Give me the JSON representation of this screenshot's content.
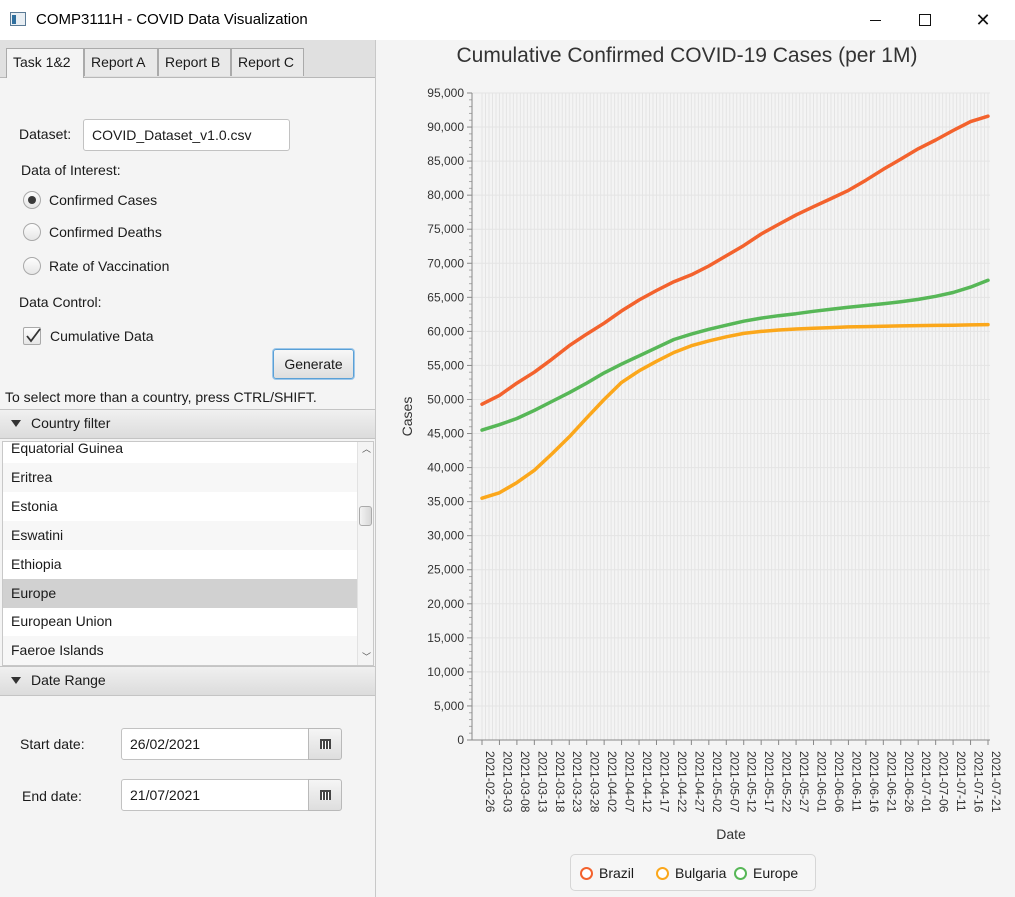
{
  "window": {
    "title": "COMP3111H - COVID Data Visualization"
  },
  "tabs": [
    {
      "label": "Task 1&2"
    },
    {
      "label": "Report A"
    },
    {
      "label": "Report B"
    },
    {
      "label": "Report C"
    }
  ],
  "active_tab": "Task 1&2",
  "form": {
    "dataset_label": "Dataset:",
    "dataset_value": "COVID_Dataset_v1.0.csv",
    "interest_label": "Data of Interest:",
    "options": [
      {
        "label": "Confirmed Cases",
        "selected": true
      },
      {
        "label": "Confirmed Deaths",
        "selected": false
      },
      {
        "label": "Rate of Vaccination",
        "selected": false
      }
    ],
    "control_label": "Data Control:",
    "cumulative_label": "Cumulative Data",
    "cumulative_checked": true,
    "generate_label": "Generate",
    "hint": "To select more than a country, press CTRL/SHIFT."
  },
  "country_filter": {
    "title": "Country filter",
    "items": [
      "Equatorial Guinea",
      "Eritrea",
      "Estonia",
      "Eswatini",
      "Ethiopia",
      "Europe",
      "European Union",
      "Faeroe Islands"
    ],
    "selected": "Europe"
  },
  "date_range": {
    "title": "Date Range",
    "start_label": "Start date:",
    "start_value": "26/02/2021",
    "end_label": "End date:",
    "end_value": "21/07/2021"
  },
  "chart_data": {
    "type": "line",
    "title": "Cumulative Confirmed COVID-19 Cases (per 1M)",
    "xlabel": "Date",
    "ylabel": "Cases",
    "ylim": [
      0,
      95000
    ],
    "ytick_step": 5000,
    "y_ticks": [
      "0",
      "5,000",
      "10,000",
      "15,000",
      "20,000",
      "25,000",
      "30,000",
      "35,000",
      "40,000",
      "45,000",
      "50,000",
      "55,000",
      "60,000",
      "65,000",
      "70,000",
      "75,000",
      "80,000",
      "85,000",
      "90,000",
      "95,000"
    ],
    "x_tick_labels": [
      "2021-02-26",
      "2021-03-03",
      "2021-03-08",
      "2021-03-13",
      "2021-03-18",
      "2021-03-23",
      "2021-03-28",
      "2021-04-02",
      "2021-04-07",
      "2021-04-12",
      "2021-04-17",
      "2021-04-22",
      "2021-04-27",
      "2021-05-02",
      "2021-05-07",
      "2021-05-12",
      "2021-05-17",
      "2021-05-22",
      "2021-05-27",
      "2021-06-01",
      "2021-06-06",
      "2021-06-11",
      "2021-06-16",
      "2021-06-21",
      "2021-06-26",
      "2021-07-01",
      "2021-07-06",
      "2021-07-11",
      "2021-07-16",
      "2021-07-21"
    ],
    "grid": true,
    "legend": "bottom",
    "series": [
      {
        "name": "Brazil",
        "color": "#f3622d",
        "values": [
          49300,
          50600,
          52400,
          54000,
          55900,
          57900,
          59600,
          61200,
          63000,
          64600,
          66000,
          67300,
          68300,
          69600,
          71100,
          72600,
          74300,
          75700,
          77100,
          78300,
          79500,
          80700,
          82200,
          83800,
          85300,
          86800,
          88100,
          89500,
          90800,
          91600
        ]
      },
      {
        "name": "Bulgaria",
        "color": "#fba71b",
        "values": [
          35500,
          36300,
          37800,
          39600,
          42000,
          44500,
          47300,
          50000,
          52500,
          54200,
          55600,
          56900,
          57900,
          58600,
          59200,
          59700,
          60000,
          60200,
          60350,
          60450,
          60550,
          60650,
          60700,
          60750,
          60800,
          60850,
          60880,
          60900,
          60950,
          61000
        ]
      },
      {
        "name": "Europe",
        "color": "#57b757",
        "values": [
          45500,
          46300,
          47200,
          48400,
          49700,
          51000,
          52400,
          53900,
          55200,
          56400,
          57600,
          58800,
          59600,
          60300,
          60900,
          61500,
          61950,
          62300,
          62600,
          62950,
          63250,
          63550,
          63800,
          64050,
          64350,
          64700,
          65150,
          65700,
          66500,
          67500
        ]
      }
    ]
  }
}
